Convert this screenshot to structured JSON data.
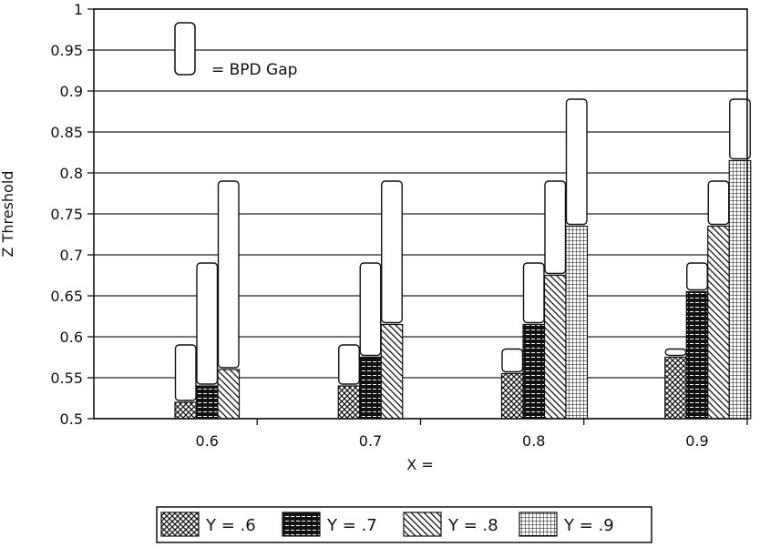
{
  "chart_data": {
    "type": "bar",
    "title": "",
    "xlabel": "X =",
    "ylabel": "Z Threshold",
    "ylim": [
      0.5,
      1
    ],
    "yticks": [
      "0.5",
      "0.55",
      "0.6",
      "0.65",
      "0.7",
      "0.75",
      "0.8",
      "0.85",
      "0.9",
      "0.95",
      "1"
    ],
    "grid": true,
    "categories": [
      "0.6",
      "0.7",
      "0.8",
      "0.9"
    ],
    "series": [
      {
        "name": "Y = .6",
        "pattern": "crosshatch",
        "values": [
          0.52,
          0.54,
          0.555,
          0.575
        ],
        "gap_top": [
          0.59,
          0.59,
          0.585,
          0.585
        ]
      },
      {
        "name": "Y = .7",
        "pattern": "dark-horizontal",
        "values": [
          0.54,
          0.575,
          0.615,
          0.655
        ],
        "gap_top": [
          0.69,
          0.69,
          0.69,
          0.69
        ]
      },
      {
        "name": "Y = .8",
        "pattern": "diagonal",
        "values": [
          0.56,
          0.615,
          0.675,
          0.735
        ],
        "gap_top": [
          0.79,
          0.79,
          0.79,
          0.79
        ]
      },
      {
        "name": "Y = .9",
        "pattern": "grid",
        "values": [
          null,
          null,
          0.735,
          0.815
        ],
        "gap_top": [
          null,
          null,
          0.89,
          0.89
        ]
      }
    ],
    "gap_legend": "= BPD Gap",
    "legend_position": "bottom"
  }
}
